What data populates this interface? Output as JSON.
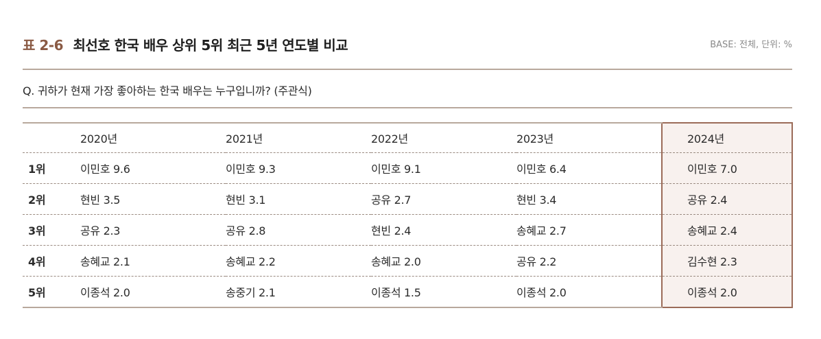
{
  "header": {
    "table_label": "표 2-6",
    "title": "최선호 한국 배우 상위 5위 최근 5년 연도별 비교",
    "base_note": "BASE: 전체, 단위: %"
  },
  "question": "Q. 귀하가 현재 가장 좋아하는 한국 배우는 누구입니까? (주관식)",
  "table": {
    "years": [
      "2020년",
      "2021년",
      "2022년",
      "2023년",
      "2024년"
    ],
    "highlighted_year": "2024년",
    "highlight_color": "#9b6b58",
    "rows": [
      {
        "rank": "1위",
        "cells": [
          "이민호 9.6",
          "이민호 9.3",
          "이민호 9.1",
          "이민호 6.4",
          "이민호 7.0"
        ]
      },
      {
        "rank": "2위",
        "cells": [
          "현빈 3.5",
          "현빈 3.1",
          "공유 2.7",
          "현빈 3.4",
          "공유 2.4"
        ]
      },
      {
        "rank": "3위",
        "cells": [
          "공유 2.3",
          "공유 2.8",
          "현빈 2.4",
          "송혜교 2.7",
          "송혜교 2.4"
        ]
      },
      {
        "rank": "4위",
        "cells": [
          "송혜교 2.1",
          "송혜교 2.2",
          "송혜교 2.0",
          "공유 2.2",
          "김수현 2.3"
        ]
      },
      {
        "rank": "5위",
        "cells": [
          "이종석 2.0",
          "송중기 2.1",
          "이종석 1.5",
          "이종석 2.0",
          "이종석 2.0"
        ]
      }
    ]
  }
}
